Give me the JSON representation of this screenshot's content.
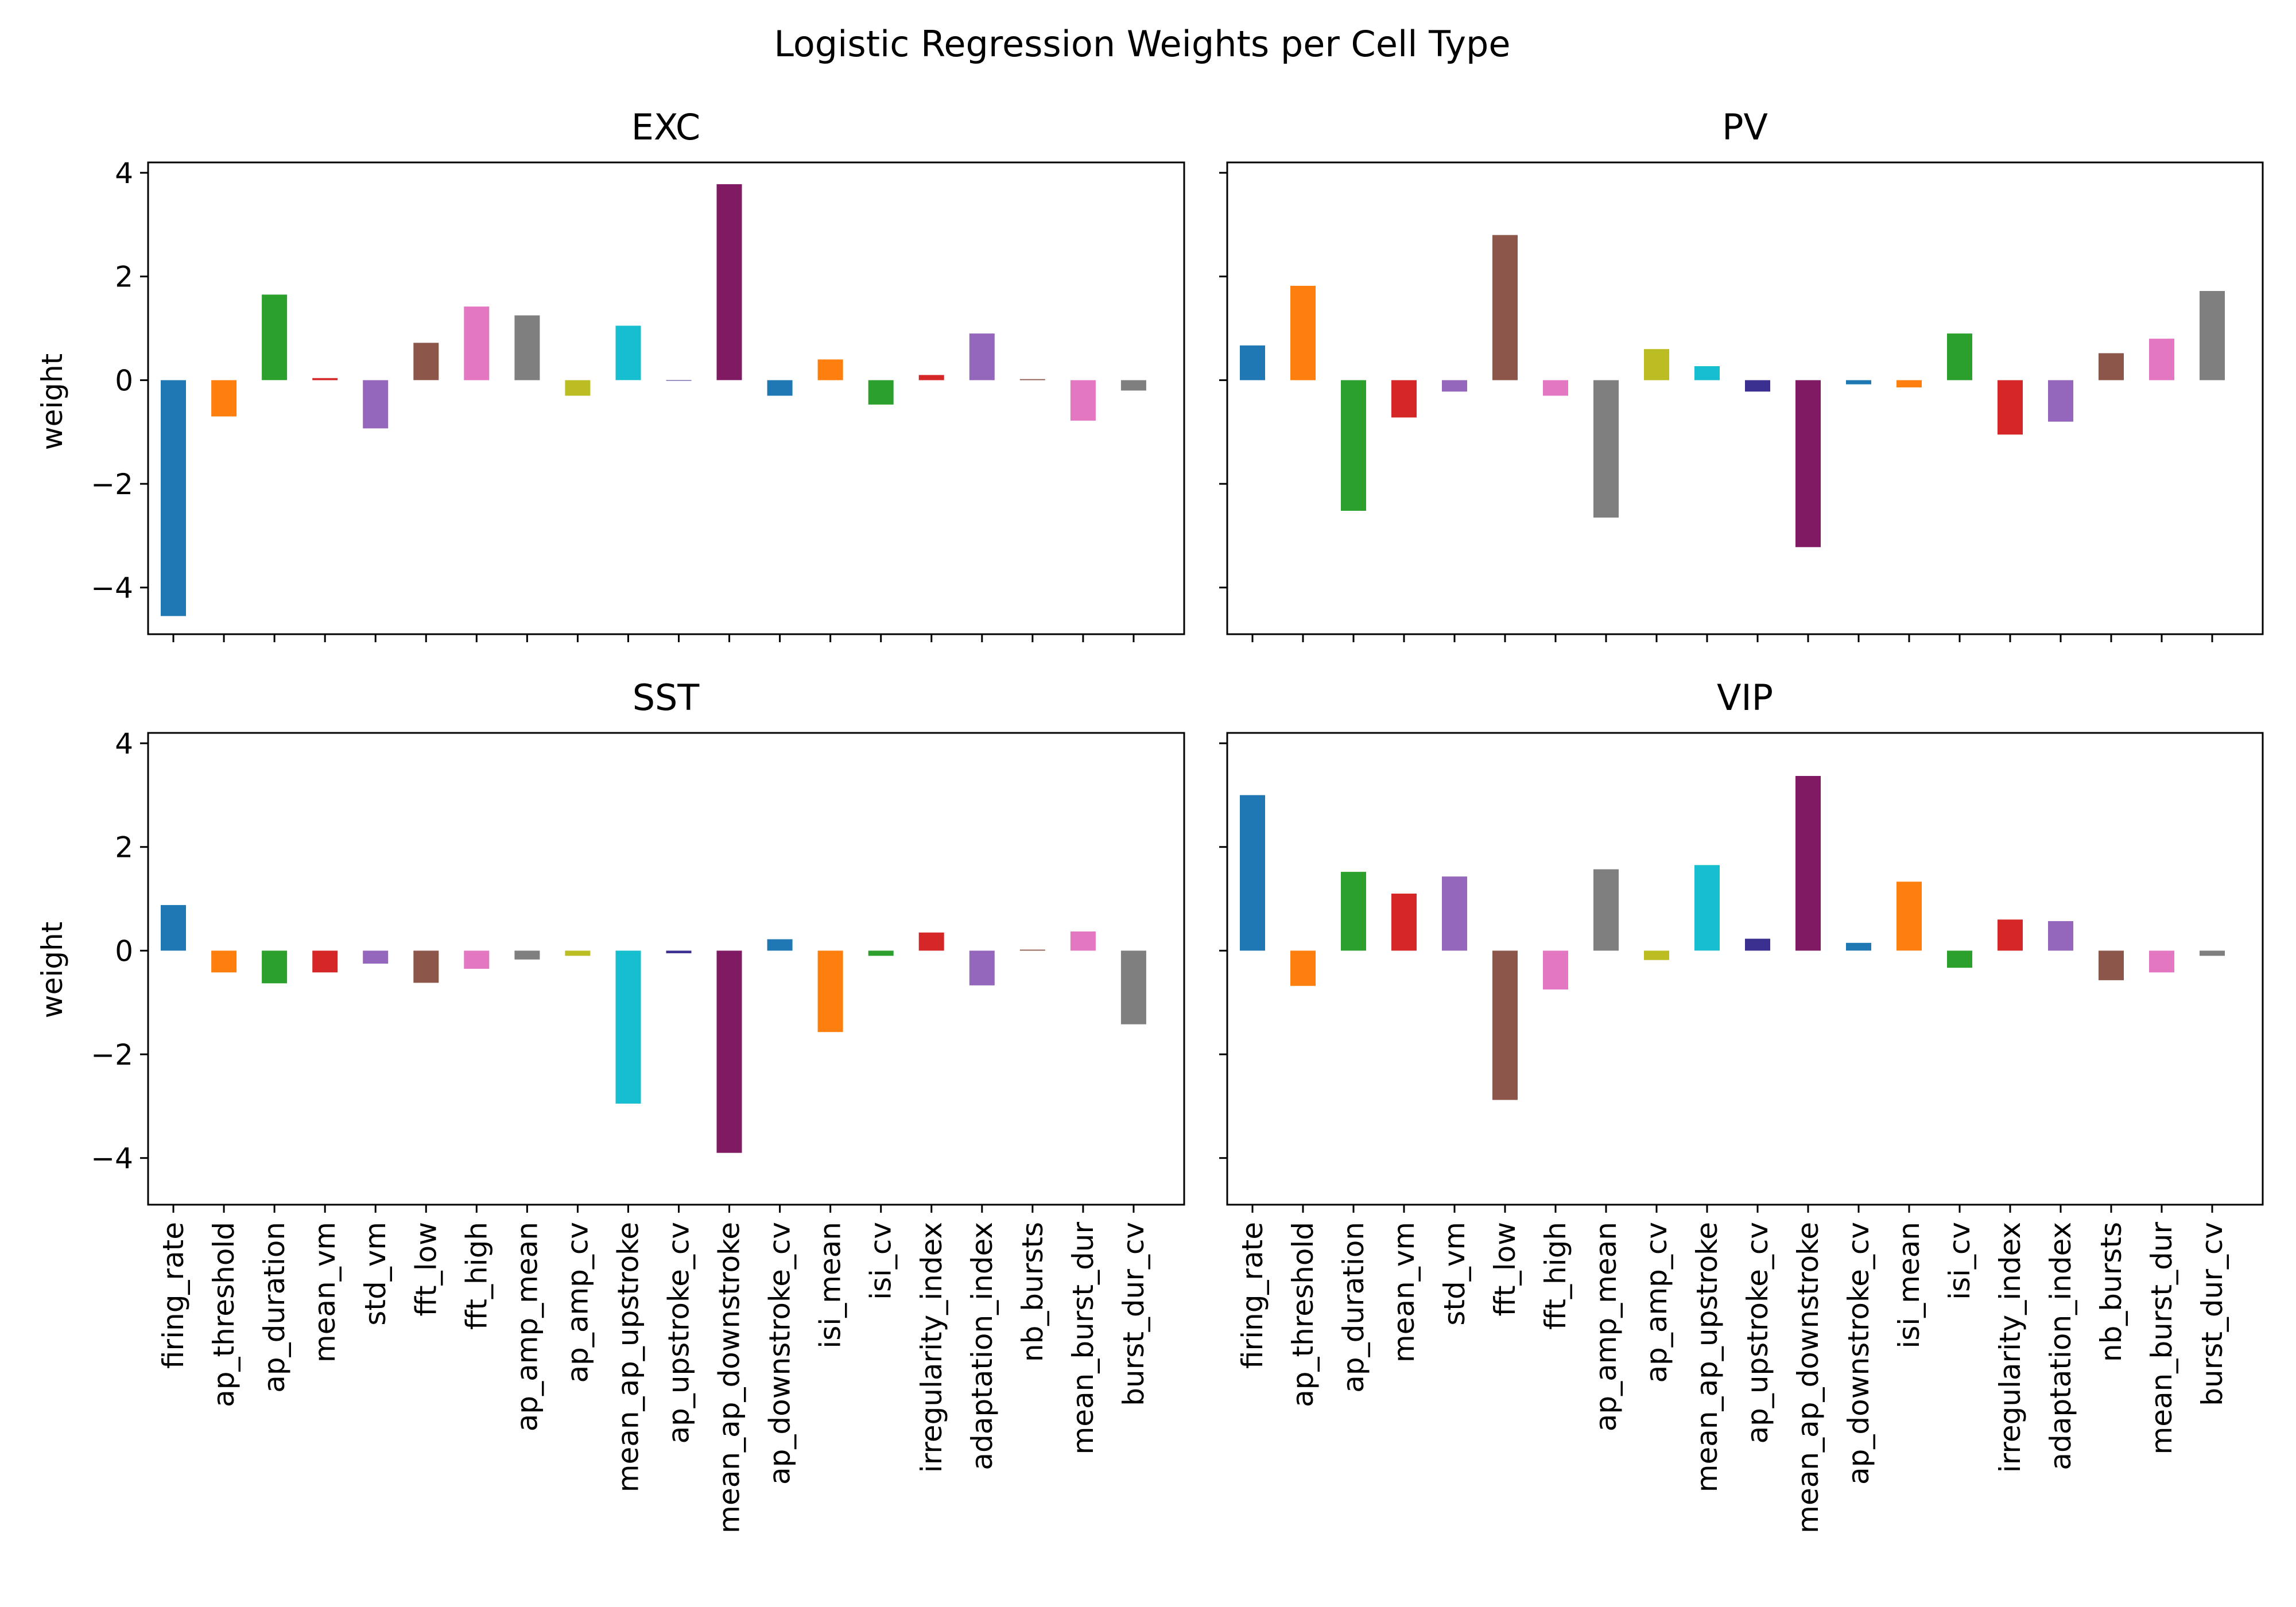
{
  "title": "Logistic Regression Weights per Cell Type",
  "ylabel": "weight",
  "ylim": [
    -4.9,
    4.2
  ],
  "yticks": [
    4,
    2,
    0,
    -2,
    -4
  ],
  "ytick_labels": [
    "4",
    "2",
    "0",
    "−2",
    "−4"
  ],
  "features": [
    "firing_rate",
    "ap_threshold",
    "ap_duration",
    "mean_vm",
    "std_vm",
    "fft_low",
    "fft_high",
    "ap_amp_mean",
    "ap_amp_cv",
    "mean_ap_upstroke",
    "ap_upstroke_cv",
    "mean_ap_downstroke",
    "ap_downstroke_cv",
    "isi_mean",
    "isi_cv",
    "irregularity_index",
    "adaptation_index",
    "nb_bursts",
    "mean_burst_dur",
    "burst_dur_cv"
  ],
  "bar_colors": [
    "#1f77b4",
    "#ff7f0e",
    "#2ca02c",
    "#d62728",
    "#9467bd",
    "#8c564b",
    "#e377c2",
    "#7f7f7f",
    "#bcbd22",
    "#17becf",
    "#3b2f8f",
    "#7f1a63",
    "#1f77b4",
    "#ff7f0e",
    "#2ca02c",
    "#d62728",
    "#9467bd",
    "#8c564b",
    "#e377c2",
    "#7f7f7f"
  ],
  "chart_data": [
    {
      "type": "bar",
      "title": "EXC",
      "ylabel": "weight",
      "ylim": [
        -4.9,
        4.2
      ],
      "categories": [
        "firing_rate",
        "ap_threshold",
        "ap_duration",
        "mean_vm",
        "std_vm",
        "fft_low",
        "fft_high",
        "ap_amp_mean",
        "ap_amp_cv",
        "mean_ap_upstroke",
        "ap_upstroke_cv",
        "mean_ap_downstroke",
        "ap_downstroke_cv",
        "isi_mean",
        "isi_cv",
        "irregularity_index",
        "adaptation_index",
        "nb_bursts",
        "mean_burst_dur",
        "burst_dur_cv"
      ],
      "values": [
        -4.55,
        -0.7,
        1.65,
        0.04,
        -0.93,
        0.72,
        1.42,
        1.25,
        -0.3,
        1.05,
        0.0,
        3.78,
        -0.3,
        0.4,
        -0.47,
        0.1,
        0.9,
        0.02,
        -0.78,
        -0.2
      ]
    },
    {
      "type": "bar",
      "title": "PV",
      "ylabel": "",
      "ylim": [
        -4.9,
        4.2
      ],
      "categories": [
        "firing_rate",
        "ap_threshold",
        "ap_duration",
        "mean_vm",
        "std_vm",
        "fft_low",
        "fft_high",
        "ap_amp_mean",
        "ap_amp_cv",
        "mean_ap_upstroke",
        "ap_upstroke_cv",
        "mean_ap_downstroke",
        "ap_downstroke_cv",
        "isi_mean",
        "isi_cv",
        "irregularity_index",
        "adaptation_index",
        "nb_bursts",
        "mean_burst_dur",
        "burst_dur_cv"
      ],
      "values": [
        0.67,
        1.82,
        -2.52,
        -0.72,
        -0.22,
        2.8,
        -0.3,
        -2.65,
        0.6,
        0.27,
        -0.22,
        -3.22,
        -0.08,
        -0.14,
        0.9,
        -1.05,
        -0.8,
        0.52,
        0.8,
        1.72
      ]
    },
    {
      "type": "bar",
      "title": "SST",
      "ylabel": "weight",
      "ylim": [
        -4.9,
        4.2
      ],
      "categories": [
        "firing_rate",
        "ap_threshold",
        "ap_duration",
        "mean_vm",
        "std_vm",
        "fft_low",
        "fft_high",
        "ap_amp_mean",
        "ap_amp_cv",
        "mean_ap_upstroke",
        "ap_upstroke_cv",
        "mean_ap_downstroke",
        "ap_downstroke_cv",
        "isi_mean",
        "isi_cv",
        "irregularity_index",
        "adaptation_index",
        "nb_bursts",
        "mean_burst_dur",
        "burst_dur_cv"
      ],
      "values": [
        0.88,
        -0.42,
        -0.63,
        -0.42,
        -0.25,
        -0.62,
        -0.35,
        -0.17,
        -0.1,
        -2.95,
        -0.05,
        -3.9,
        0.22,
        -1.57,
        -0.1,
        0.35,
        -0.67,
        0.02,
        0.37,
        -1.42
      ]
    },
    {
      "type": "bar",
      "title": "VIP",
      "ylabel": "",
      "ylim": [
        -4.9,
        4.2
      ],
      "categories": [
        "firing_rate",
        "ap_threshold",
        "ap_duration",
        "mean_vm",
        "std_vm",
        "fft_low",
        "fft_high",
        "ap_amp_mean",
        "ap_amp_cv",
        "mean_ap_upstroke",
        "ap_upstroke_cv",
        "mean_ap_downstroke",
        "ap_downstroke_cv",
        "isi_mean",
        "isi_cv",
        "irregularity_index",
        "adaptation_index",
        "nb_bursts",
        "mean_burst_dur",
        "burst_dur_cv"
      ],
      "values": [
        3.0,
        -0.68,
        1.52,
        1.1,
        1.43,
        -2.88,
        -0.75,
        1.57,
        -0.18,
        1.65,
        0.23,
        3.37,
        0.15,
        1.33,
        -0.33,
        0.6,
        0.57,
        -0.57,
        -0.42,
        -0.1
      ]
    }
  ]
}
